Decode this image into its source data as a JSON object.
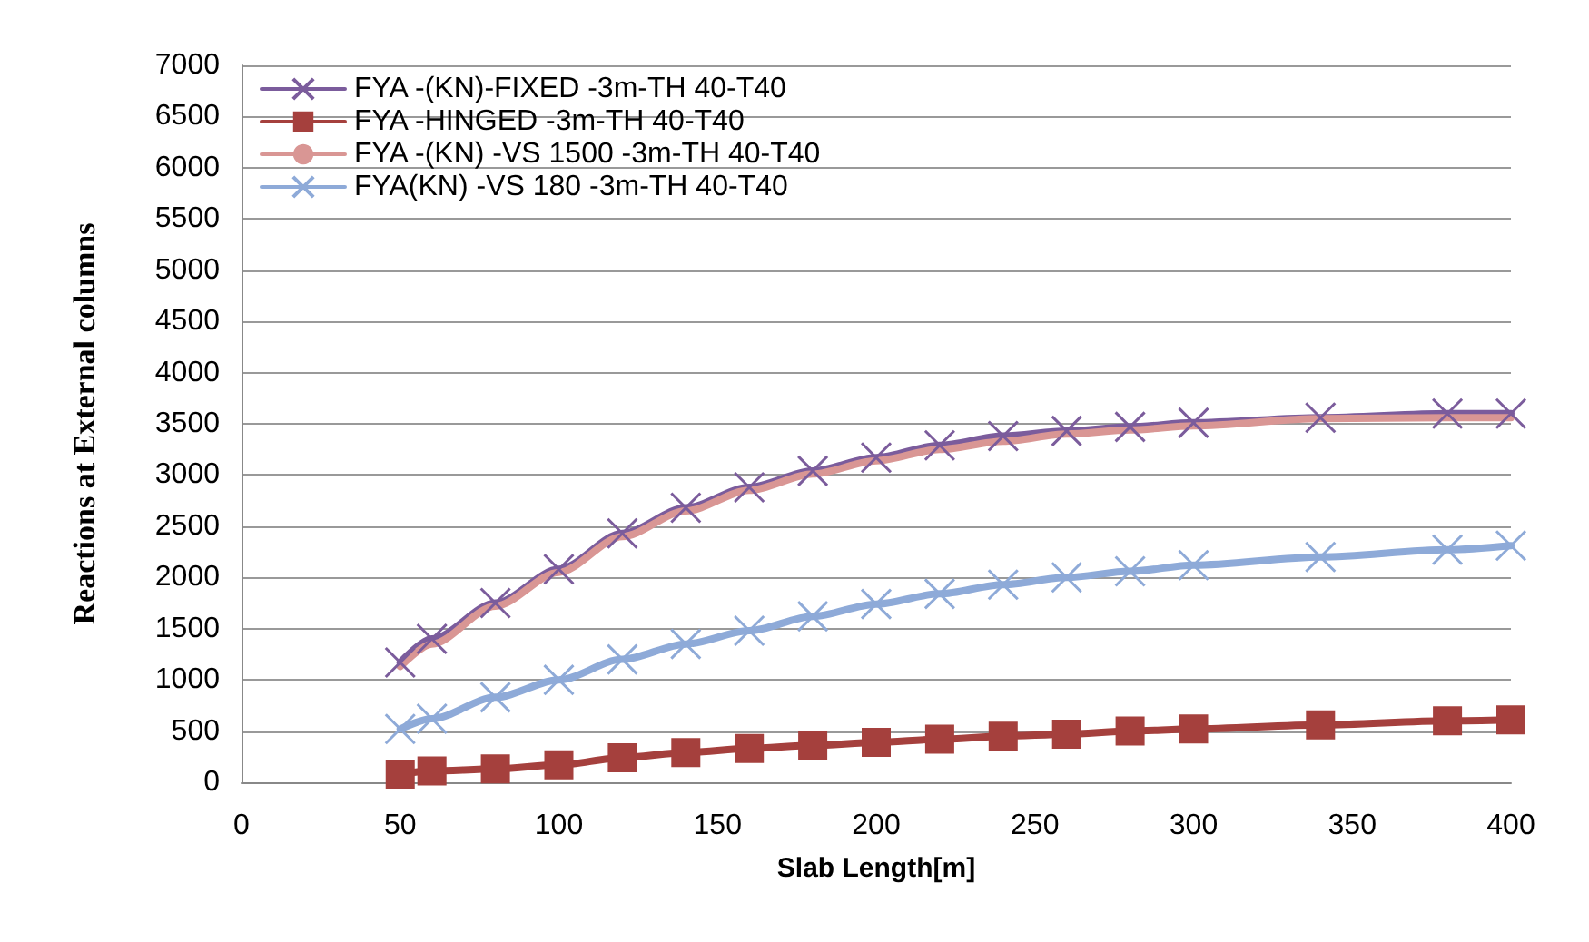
{
  "chart_data": {
    "type": "line",
    "xlabel": "Slab Length[m]",
    "ylabel": "Reactions at External columns",
    "x": [
      50,
      60,
      80,
      100,
      120,
      140,
      160,
      180,
      200,
      220,
      240,
      260,
      280,
      300,
      340,
      380,
      400
    ],
    "series": [
      {
        "name": "FYA -(KN)-FIXED -3m-TH 40-T40",
        "color": "#7b5c9c",
        "marker": "cross",
        "values": [
          1170,
          1400,
          1750,
          2080,
          2430,
          2680,
          2880,
          3040,
          3170,
          3290,
          3380,
          3430,
          3470,
          3510,
          3560,
          3600,
          3600
        ]
      },
      {
        "name": "FYA -HINGED -3m-TH 40-T40",
        "color": "#a5403d",
        "marker": "square",
        "values": [
          80,
          110,
          130,
          170,
          240,
          290,
          330,
          360,
          390,
          420,
          450,
          470,
          500,
          520,
          560,
          600,
          610
        ]
      },
      {
        "name": "FYA -(KN) -VS 1500 -3m-TH 40-T40",
        "color": "#d99694",
        "marker": "none",
        "values": [
          1130,
          1350,
          1720,
          2050,
          2400,
          2650,
          2850,
          3010,
          3140,
          3250,
          3330,
          3400,
          3440,
          3480,
          3550,
          3560,
          3560
        ]
      },
      {
        "name": "FYA(KN) -VS 180 -3m-TH 40-T40",
        "color": "#8eaad8",
        "marker": "cross",
        "values": [
          520,
          620,
          830,
          1000,
          1200,
          1350,
          1480,
          1620,
          1740,
          1840,
          1930,
          2000,
          2060,
          2120,
          2200,
          2270,
          2310
        ]
      }
    ],
    "xlim": [
      0,
      400
    ],
    "xticks": [
      0,
      50,
      100,
      150,
      200,
      250,
      300,
      350,
      400
    ],
    "ylim": [
      0,
      7000
    ],
    "yticks": [
      0,
      500,
      1000,
      1500,
      2000,
      2500,
      3000,
      3500,
      4000,
      4500,
      5000,
      5500,
      6000,
      6500,
      7000
    ],
    "grid": "y",
    "legend": "top left",
    "line_style": "solid"
  }
}
